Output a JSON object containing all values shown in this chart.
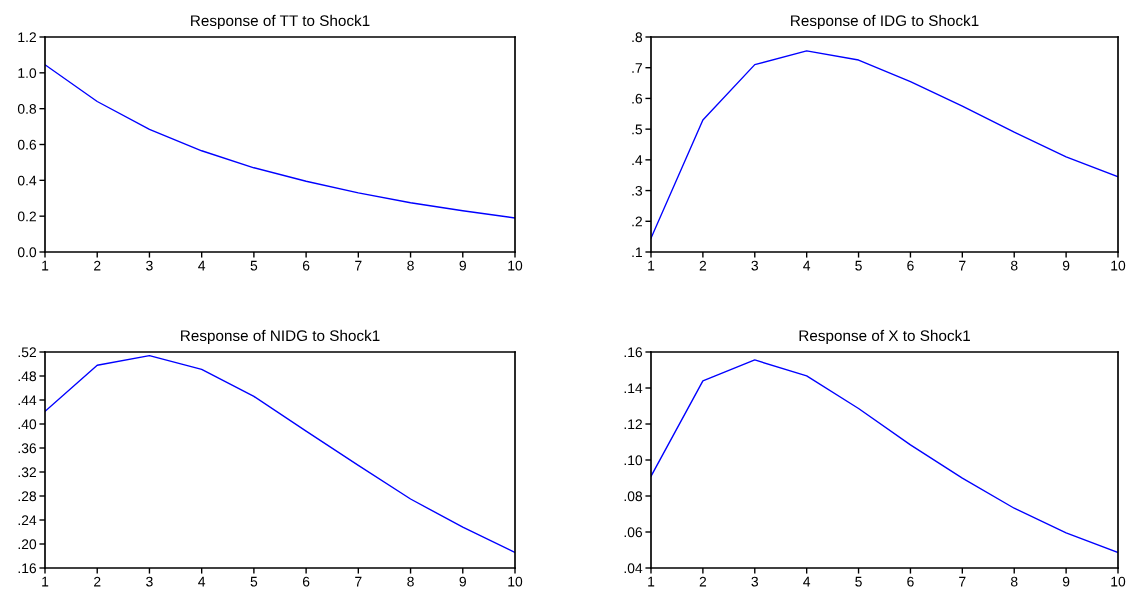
{
  "chart_data": [
    {
      "type": "line",
      "title": "Response of TT to Shock1",
      "x": [
        1,
        2,
        3,
        4,
        5,
        6,
        7,
        8,
        9,
        10
      ],
      "series": [
        {
          "color": "#0000ff",
          "values": [
            1.045,
            0.84,
            0.685,
            0.565,
            0.47,
            0.395,
            0.33,
            0.275,
            0.23,
            0.19
          ]
        }
      ],
      "xlim": [
        1,
        10
      ],
      "xticks": [
        1,
        2,
        3,
        4,
        5,
        6,
        7,
        8,
        9,
        10
      ],
      "ylim": [
        0,
        1.2
      ],
      "yticks": [
        {
          "value": 0,
          "label": "0.0"
        },
        {
          "value": 0.2,
          "label": "0.2"
        },
        {
          "value": 0.4,
          "label": "0.4"
        },
        {
          "value": 0.6,
          "label": "0.6"
        },
        {
          "value": 0.8,
          "label": "0.8"
        },
        {
          "value": 1.0,
          "label": "1.0"
        },
        {
          "value": 1.2,
          "label": "1.2"
        }
      ],
      "grid": false,
      "legend": false
    },
    {
      "type": "line",
      "title": "Response of IDG to Shock1",
      "x": [
        1,
        2,
        3,
        4,
        5,
        6,
        7,
        8,
        9,
        10
      ],
      "series": [
        {
          "color": "#0000ff",
          "values": [
            0.145,
            0.53,
            0.71,
            0.755,
            0.725,
            0.655,
            0.575,
            0.49,
            0.41,
            0.345
          ]
        }
      ],
      "xlim": [
        1,
        10
      ],
      "xticks": [
        1,
        2,
        3,
        4,
        5,
        6,
        7,
        8,
        9,
        10
      ],
      "ylim": [
        0.1,
        0.8
      ],
      "yticks": [
        {
          "value": 0.1,
          "label": ".1"
        },
        {
          "value": 0.2,
          "label": ".2"
        },
        {
          "value": 0.3,
          "label": ".3"
        },
        {
          "value": 0.4,
          "label": ".4"
        },
        {
          "value": 0.5,
          "label": ".5"
        },
        {
          "value": 0.6,
          "label": ".6"
        },
        {
          "value": 0.7,
          "label": ".7"
        },
        {
          "value": 0.8,
          "label": ".8"
        }
      ],
      "grid": false,
      "legend": false
    },
    {
      "type": "line",
      "title": "Response of NIDG to Shock1",
      "x": [
        1,
        2,
        3,
        4,
        5,
        6,
        7,
        8,
        9,
        10
      ],
      "series": [
        {
          "color": "#0000ff",
          "values": [
            0.421,
            0.498,
            0.514,
            0.491,
            0.446,
            0.388,
            0.331,
            0.275,
            0.228,
            0.186
          ]
        }
      ],
      "xlim": [
        1,
        10
      ],
      "xticks": [
        1,
        2,
        3,
        4,
        5,
        6,
        7,
        8,
        9,
        10
      ],
      "ylim": [
        0.16,
        0.52
      ],
      "yticks": [
        {
          "value": 0.16,
          "label": ".16"
        },
        {
          "value": 0.2,
          "label": ".20"
        },
        {
          "value": 0.24,
          "label": ".24"
        },
        {
          "value": 0.28,
          "label": ".28"
        },
        {
          "value": 0.32,
          "label": ".32"
        },
        {
          "value": 0.36,
          "label": ".36"
        },
        {
          "value": 0.4,
          "label": ".40"
        },
        {
          "value": 0.44,
          "label": ".44"
        },
        {
          "value": 0.48,
          "label": ".48"
        },
        {
          "value": 0.52,
          "label": ".52"
        }
      ],
      "grid": false,
      "legend": false
    },
    {
      "type": "line",
      "title": "Response of X to Shock1",
      "x": [
        1,
        2,
        3,
        4,
        5,
        6,
        7,
        8,
        9,
        10
      ],
      "series": [
        {
          "color": "#0000ff",
          "values": [
            0.091,
            0.144,
            0.1556,
            0.1467,
            0.1286,
            0.1084,
            0.0899,
            0.0732,
            0.0595,
            0.0486
          ]
        }
      ],
      "xlim": [
        1,
        10
      ],
      "xticks": [
        1,
        2,
        3,
        4,
        5,
        6,
        7,
        8,
        9,
        10
      ],
      "ylim": [
        0.04,
        0.16
      ],
      "yticks": [
        {
          "value": 0.04,
          "label": ".04"
        },
        {
          "value": 0.06,
          "label": ".06"
        },
        {
          "value": 0.08,
          "label": ".08"
        },
        {
          "value": 0.1,
          "label": ".10"
        },
        {
          "value": 0.12,
          "label": ".12"
        },
        {
          "value": 0.14,
          "label": ".14"
        },
        {
          "value": 0.16,
          "label": ".16"
        }
      ],
      "grid": false,
      "legend": false
    }
  ]
}
